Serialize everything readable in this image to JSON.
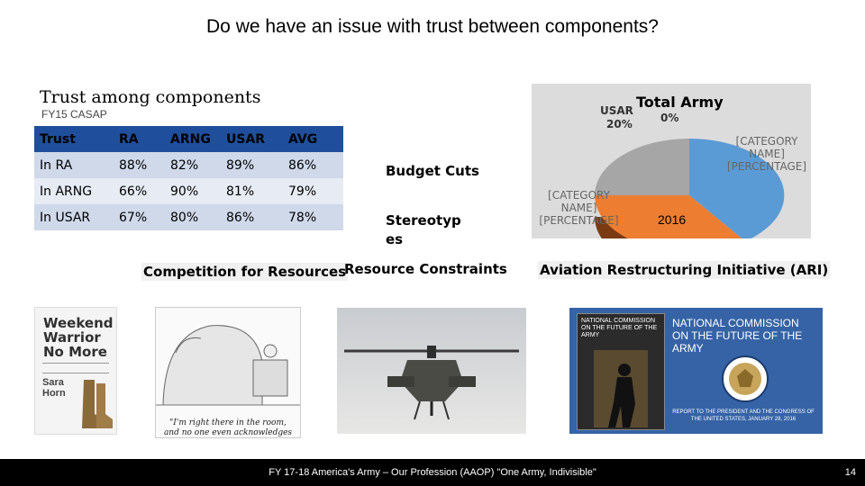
{
  "slide": {
    "title": "Do we have an issue with trust between components?",
    "subtitle": "Trust among components",
    "source": "FY15 CASAP",
    "table": {
      "headers": [
        "Trust",
        "RA",
        "ARNG",
        "USAR",
        "AVG"
      ],
      "rows": [
        [
          "In RA",
          "88%",
          "82%",
          "89%",
          "86%"
        ],
        [
          "In ARNG",
          "66%",
          "90%",
          "81%",
          "79%"
        ],
        [
          "In USAR",
          "67%",
          "80%",
          "86%",
          "78%"
        ]
      ]
    },
    "labels": {
      "budget": "Budget Cuts",
      "stereotypes_1": "Stereotyp",
      "stereotypes_2": "es",
      "competition": "Competition for Resources",
      "constraints": "Resource Constraints",
      "ari": "Aviation Restructuring Initiative (ARI)"
    },
    "pie": {
      "title": "Total Army",
      "year": "2016",
      "label_usar_name": "USAR",
      "label_usar_pct": "20%",
      "label_zero": "0%",
      "label_cat1": "[CATEGORY NAME] [PERCENTAGE]",
      "label_cat2": "[CATEGORY NAME] [PERCENTAGE]",
      "colors": {
        "usar": "#a6a6a6",
        "orange": "#ed7d31",
        "blue": "#5b9bd5"
      }
    },
    "book": {
      "line1": "Weekend",
      "line2": "Warrior",
      "line3": "No More",
      "author1": "Sara",
      "author2": "Horn"
    },
    "cartoon_caption": "\"I'm right there in the room, and no one even acknowledges me.\"",
    "commission": {
      "heading": "NATIONAL COMMISSION ON THE FUTURE OF THE ARMY",
      "cover_heading": "NATIONAL COMMISSION ON THE FUTURE OF THE ARMY",
      "report": "REPORT TO THE PRESIDENT AND THE CONGRESS OF THE UNITED STATES, JANUARY 28, 2016"
    },
    "footer": "FY 17-18 America's Army – Our Profession (AAOP) \"One Army, Indivisible\"",
    "page_number": "14"
  }
}
